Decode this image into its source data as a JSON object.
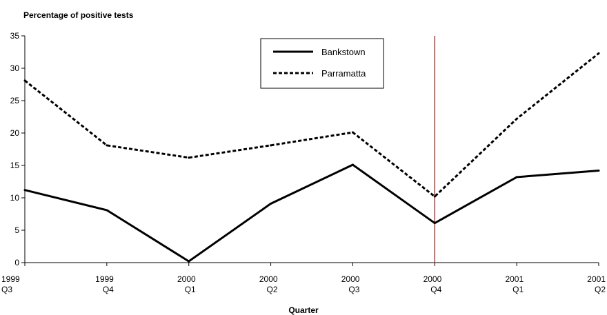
{
  "chart_data": {
    "type": "line",
    "title": "",
    "ylabel": "Percentage of positive tests",
    "xlabel": "Quarter",
    "categories": [
      [
        "1999",
        "Q3"
      ],
      [
        "1999",
        "Q4"
      ],
      [
        "2000",
        "Q1"
      ],
      [
        "2000",
        "Q2"
      ],
      [
        "2000",
        "Q3"
      ],
      [
        "2000",
        "Q4"
      ],
      [
        "2001",
        "Q1"
      ],
      [
        "2001",
        "Q2"
      ]
    ],
    "ylim": [
      0,
      35
    ],
    "yticks": [
      "0",
      "5",
      "10",
      "15",
      "20",
      "25",
      "30",
      "35"
    ],
    "grid": false,
    "legend_position": "top-center",
    "series": [
      {
        "name": "Bankstown",
        "style": "solid",
        "color": "#000000",
        "values": [
          11.2,
          8.1,
          0.2,
          9.1,
          15.1,
          6.1,
          13.2,
          14.2
        ]
      },
      {
        "name": "Parramatta",
        "style": "dashed",
        "color": "#000000",
        "values": [
          28.1,
          18.1,
          16.2,
          18.1,
          20.1,
          10.2,
          22.2,
          32.3
        ]
      }
    ],
    "reference_line": {
      "category_index": 5,
      "color": "#c0392b"
    }
  }
}
